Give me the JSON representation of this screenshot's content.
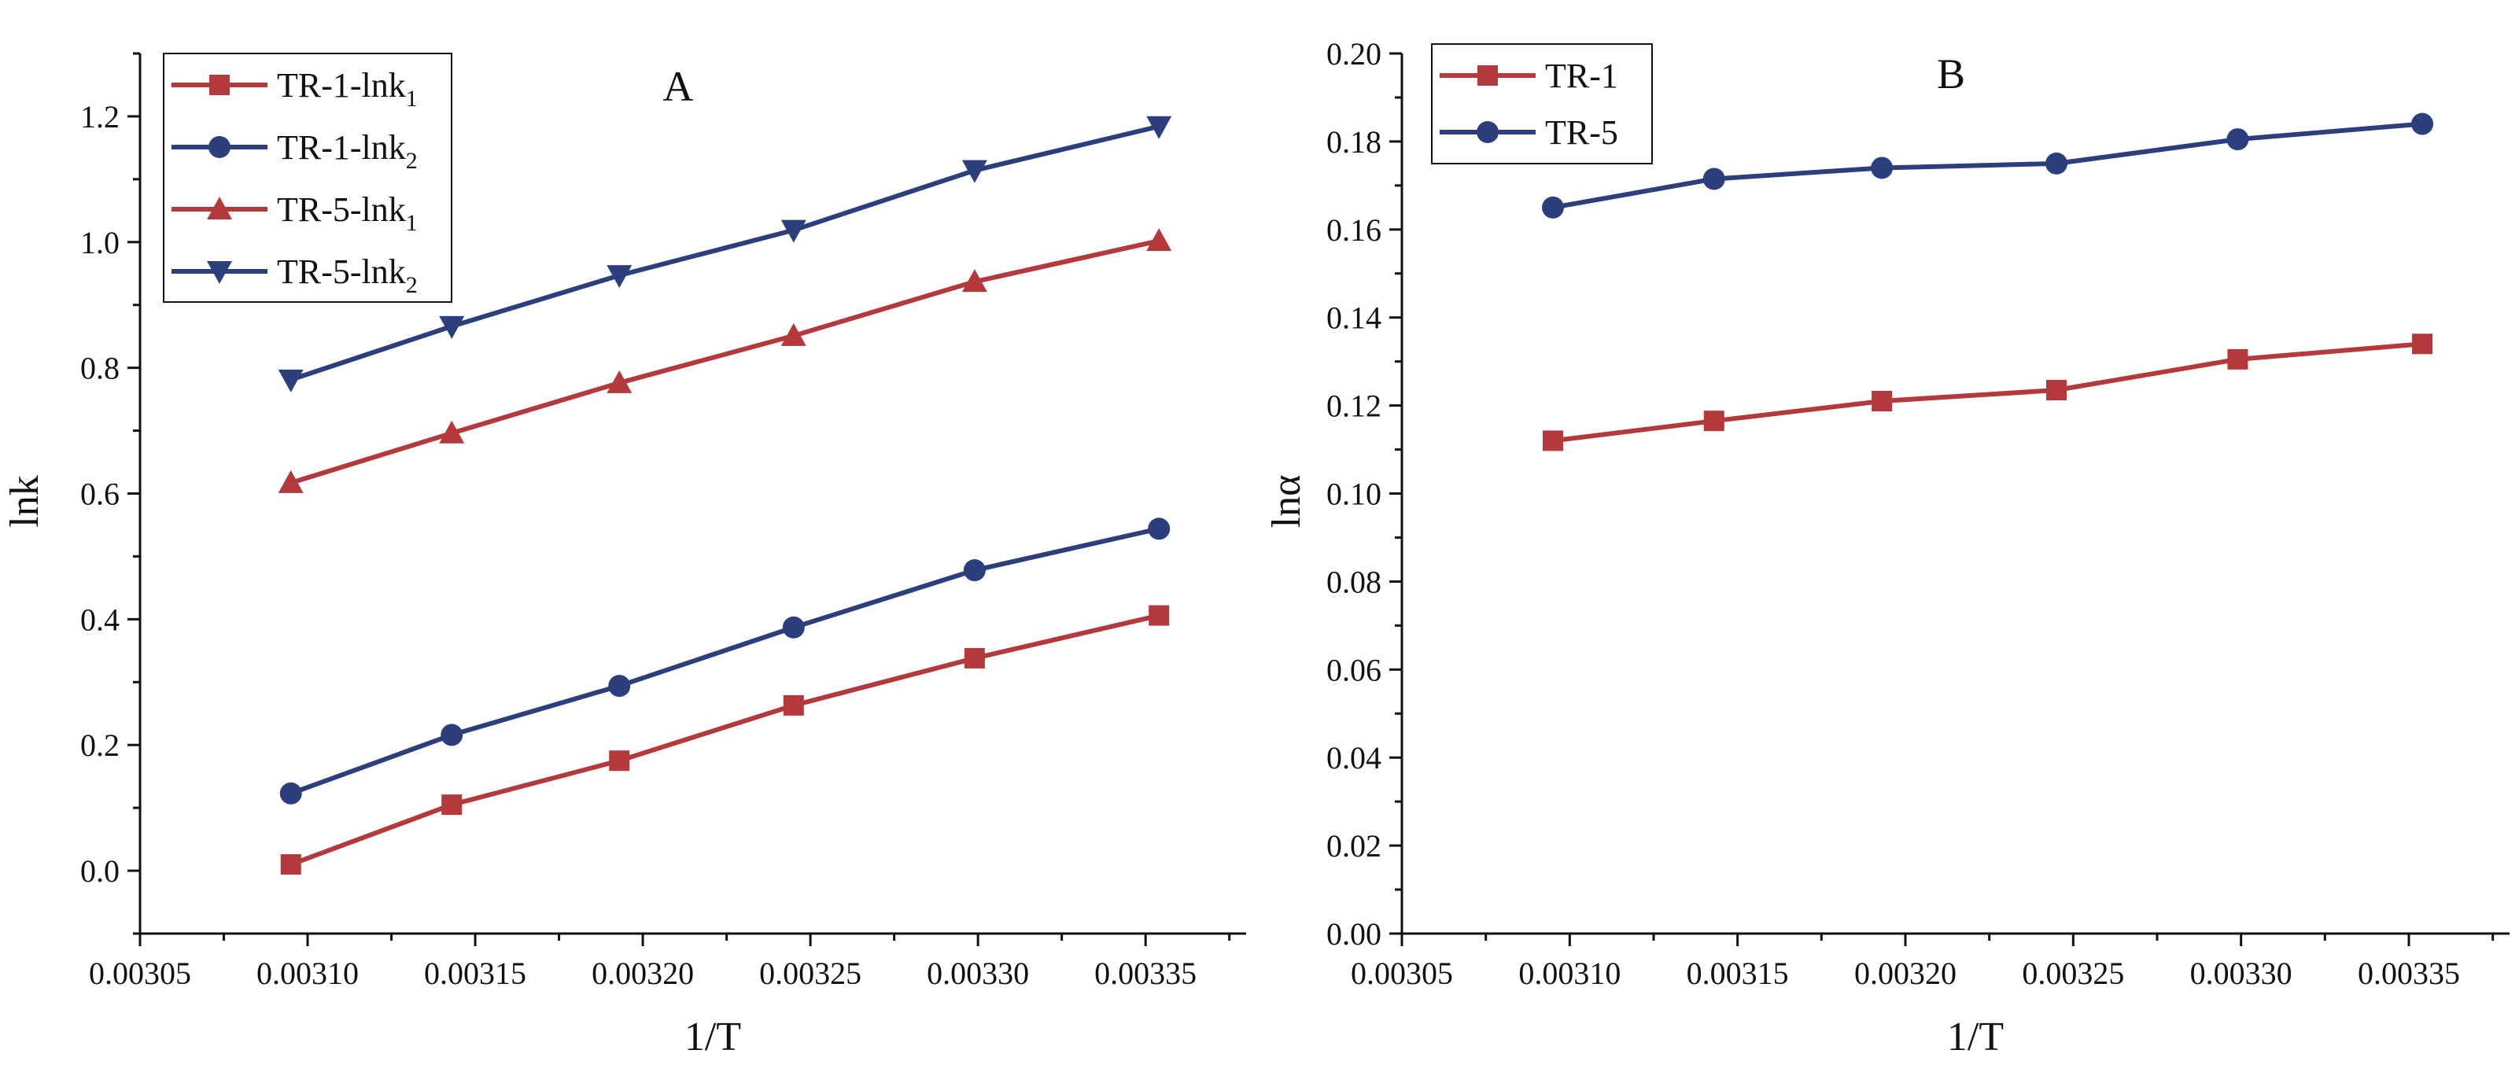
{
  "colors": {
    "red": "#b3393c",
    "blue": "#2c3f7c",
    "axis": "#111111"
  },
  "chart_data": [
    {
      "type": "line",
      "panel_label": "A",
      "xlabel": "1/T",
      "ylabel": "lnk",
      "xlim": [
        0.00305,
        0.00338
      ],
      "ylim": [
        -0.1,
        1.3
      ],
      "xticks": [
        "0.00305",
        "0.00310",
        "0.00315",
        "0.00320",
        "0.00325",
        "0.00330",
        "0.00335"
      ],
      "yticks": [
        "0.0",
        "0.2",
        "0.4",
        "0.6",
        "0.8",
        "1.0",
        "1.2"
      ],
      "x": [
        0.003095,
        0.003143,
        0.003193,
        0.003245,
        0.003299,
        0.003354
      ],
      "legend_position": "top-left",
      "series": [
        {
          "name": "TR-1-lnk",
          "subscript": "1",
          "color": "red",
          "marker": "square",
          "values": [
            0.01,
            0.105,
            0.175,
            0.263,
            0.338,
            0.406
          ]
        },
        {
          "name": "TR-1-lnk",
          "subscript": "2",
          "color": "blue",
          "marker": "circle",
          "values": [
            0.123,
            0.216,
            0.294,
            0.387,
            0.478,
            0.544
          ]
        },
        {
          "name": "TR-5-lnk",
          "subscript": "1",
          "color": "red",
          "marker": "triangle-up",
          "values": [
            0.617,
            0.696,
            0.776,
            0.851,
            0.937,
            1.002
          ]
        },
        {
          "name": "TR-5-lnk",
          "subscript": "2",
          "color": "blue",
          "marker": "triangle-down",
          "values": [
            0.781,
            0.866,
            0.947,
            1.019,
            1.114,
            1.184
          ]
        }
      ]
    },
    {
      "type": "line",
      "panel_label": "B",
      "xlabel": "1/T",
      "ylabel": "lnα",
      "xlim": [
        0.00305,
        0.00338
      ],
      "ylim": [
        0.0,
        0.2
      ],
      "xticks": [
        "0.00305",
        "0.00310",
        "0.00315",
        "0.00320",
        "0.00325",
        "0.00330",
        "0.00335"
      ],
      "yticks": [
        "0.00",
        "0.02",
        "0.04",
        "0.06",
        "0.08",
        "0.10",
        "0.12",
        "0.14",
        "0.16",
        "0.18",
        "0.20"
      ],
      "x": [
        0.003095,
        0.003143,
        0.003193,
        0.003245,
        0.003299,
        0.003354
      ],
      "legend_position": "top-left",
      "series": [
        {
          "name": "TR-1",
          "subscript": "",
          "color": "red",
          "marker": "square",
          "values": [
            0.112,
            0.1165,
            0.121,
            0.1235,
            0.1305,
            0.134
          ]
        },
        {
          "name": "TR-5",
          "subscript": "",
          "color": "blue",
          "marker": "circle",
          "values": [
            0.165,
            0.1715,
            0.174,
            0.175,
            0.1805,
            0.184
          ]
        }
      ]
    }
  ]
}
